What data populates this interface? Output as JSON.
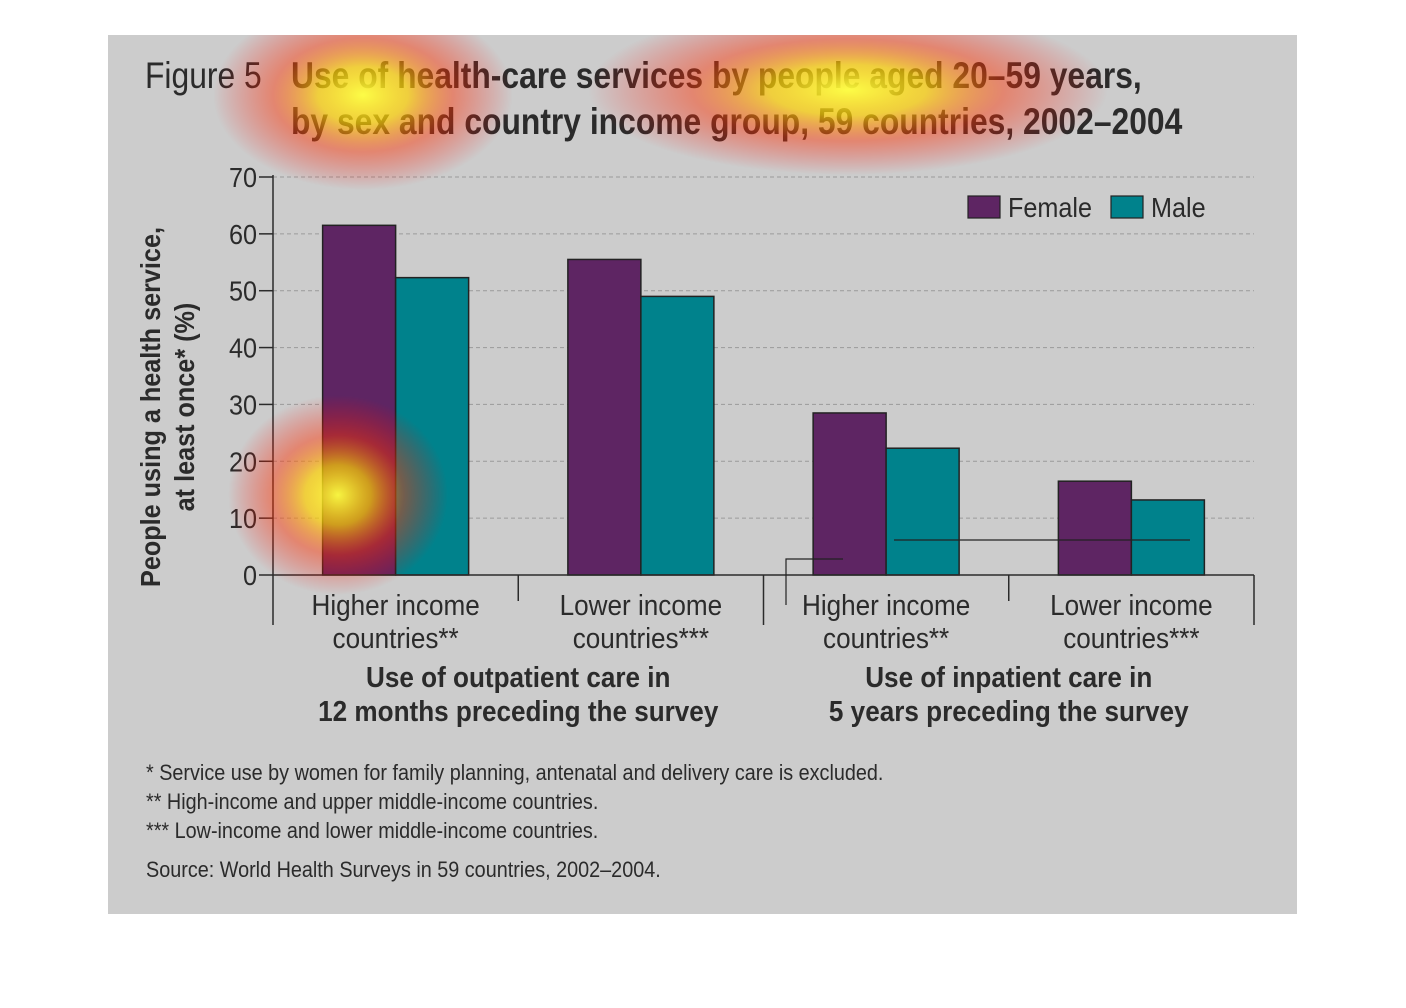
{
  "figure": {
    "label": "Figure 5",
    "title_line1": "Use of health-care services by people aged 20–59 years,",
    "title_line2": "by sex and country income group, 59 countries, 2002–2004"
  },
  "chart_data": {
    "type": "bar",
    "title": "Use of health-care services by people aged 20–59 years, by sex and country income group, 59 countries, 2002–2004",
    "ylabel_line1": "People using a health service,",
    "ylabel_line2": "at least once* (%)",
    "ylim": [
      0,
      70
    ],
    "yticks": [
      "0",
      "10",
      "20",
      "30",
      "40",
      "50",
      "60",
      "70"
    ],
    "grid": true,
    "legend_position": "top-right",
    "categories": [
      "Higher income countries**",
      "Lower income countries***",
      "Higher income countries**",
      "Lower income countries***"
    ],
    "category_lines": [
      [
        "Higher income",
        "countries**"
      ],
      [
        "Lower income",
        "countries***"
      ],
      [
        "Higher income",
        "countries**"
      ],
      [
        "Lower income",
        "countries***"
      ]
    ],
    "groups": [
      {
        "lines": [
          "Use of outpatient care in",
          "12 months preceding the survey"
        ]
      },
      {
        "lines": [
          "Use of inpatient care in",
          "5 years preceding the survey"
        ]
      }
    ],
    "series": [
      {
        "name": "Female",
        "color": "#5e2563",
        "values": [
          61.5,
          55.5,
          28.5,
          16.5
        ]
      },
      {
        "name": "Male",
        "color": "#00828c",
        "values": [
          52.3,
          49.0,
          22.3,
          13.2
        ]
      }
    ]
  },
  "footnotes": [
    "* Service use by women for family planning, antenatal and delivery care is excluded.",
    "** High-income and upper middle-income countries.",
    "*** Low-income and lower middle-income countries."
  ],
  "source": "Source: World Health Surveys in 59 countries, 2002–2004."
}
